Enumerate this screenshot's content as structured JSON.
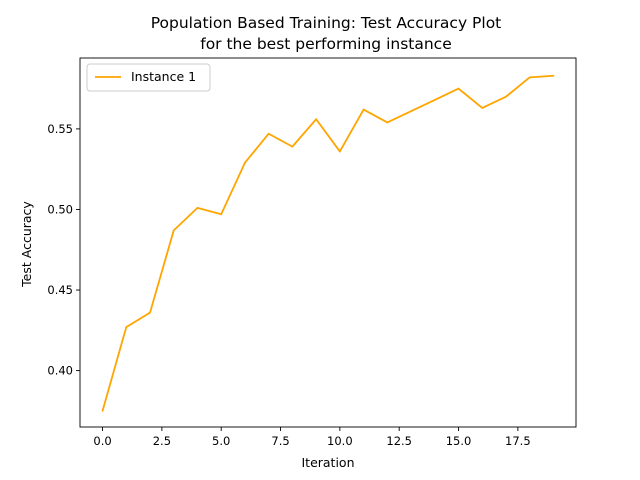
{
  "chart_data": {
    "type": "line",
    "title_lines": [
      "Population Based Training: Test Accuracy Plot",
      "for the best performing instance"
    ],
    "xlabel": "Iteration",
    "ylabel": "Test Accuracy",
    "xlim": [
      -0.95,
      19.95
    ],
    "ylim": [
      0.365,
      0.594
    ],
    "xticks": [
      0.0,
      2.5,
      5.0,
      7.5,
      10.0,
      12.5,
      15.0,
      17.5
    ],
    "xtick_labels": [
      "0.0",
      "2.5",
      "5.0",
      "7.5",
      "10.0",
      "12.5",
      "15.0",
      "17.5"
    ],
    "yticks": [
      0.4,
      0.45,
      0.5,
      0.55
    ],
    "ytick_labels": [
      "0.40",
      "0.45",
      "0.50",
      "0.55"
    ],
    "grid": false,
    "legend_position": "upper left",
    "series": [
      {
        "name": "Instance 1",
        "color": "#ffa500",
        "x": [
          0,
          1,
          2,
          3,
          4,
          5,
          6,
          7,
          8,
          9,
          10,
          11,
          12,
          13,
          14,
          15,
          16,
          17,
          18,
          19
        ],
        "y": [
          0.375,
          0.427,
          0.436,
          0.487,
          0.501,
          0.497,
          0.529,
          0.547,
          0.539,
          0.556,
          0.536,
          0.562,
          0.554,
          0.561,
          0.568,
          0.575,
          0.563,
          0.57,
          0.582,
          0.583
        ]
      }
    ]
  }
}
